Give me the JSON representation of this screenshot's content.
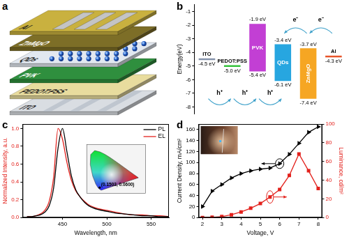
{
  "device": {
    "panel": "a",
    "layers": [
      "Al",
      "ZnMgO",
      "QDs",
      "PVK",
      "PEDOT:PSS",
      "ITO"
    ]
  },
  "chart_data": [
    {
      "panel": "b",
      "type": "energy_diagram",
      "y_label": "Energy(eV)",
      "ylim": [
        -8.5,
        -0.5
      ],
      "yticks": [
        -8,
        -7,
        -6,
        -5,
        -4,
        -3,
        -2,
        -1
      ],
      "materials": [
        {
          "name": "ITO",
          "color": "#8593ab",
          "level": {
            "value": -4.5,
            "label": "-4.5 eV"
          }
        },
        {
          "name": "PEDOT:PSS",
          "color": "#33c23a",
          "level": {
            "value": -5.0,
            "label": "-5.0 eV"
          }
        },
        {
          "name": "PVK",
          "color": "#c23fd4",
          "lumo": {
            "value": -1.9,
            "label": "-1.9 eV"
          },
          "homo": {
            "value": -5.4,
            "label": "-5.4 eV"
          }
        },
        {
          "name": "QDs",
          "color": "#27a6e0",
          "lumo": {
            "value": -3.4,
            "label": "-3.4 eV"
          },
          "homo": {
            "value": -6.1,
            "label": "-6.1 eV"
          }
        },
        {
          "name": "ZnMgO",
          "color": "#f6a623",
          "lumo": {
            "value": -3.7,
            "label": "-3.7 eV"
          },
          "homo": {
            "value": -7.4,
            "label": "-7.4 eV"
          }
        },
        {
          "name": "Al",
          "color": "#e8552a",
          "level": {
            "value": -4.3,
            "label": "-4.3 eV"
          }
        }
      ],
      "carriers": {
        "holes": [
          "h⁺",
          "h⁺",
          "h⁺"
        ],
        "electrons": [
          "e⁻",
          "e⁻"
        ]
      }
    },
    {
      "panel": "c",
      "type": "line",
      "x_label": "Wavelength, nm",
      "y_label": "Normalized Intensity, a.u.",
      "x": [
        410,
        415,
        420,
        425,
        430,
        435,
        440,
        445,
        450,
        455,
        460,
        465,
        470,
        475,
        480,
        490,
        500,
        510,
        520,
        530,
        540,
        550,
        560,
        570
      ],
      "series": [
        {
          "name": "PL",
          "color": "#000000",
          "values": [
            0.01,
            0.01,
            0.02,
            0.03,
            0.06,
            0.13,
            0.33,
            0.78,
            1.0,
            0.74,
            0.47,
            0.31,
            0.23,
            0.17,
            0.13,
            0.09,
            0.07,
            0.05,
            0.04,
            0.03,
            0.02,
            0.02,
            0.01,
            0.01
          ]
        },
        {
          "name": "EL",
          "color": "#e3211c",
          "values": [
            0.01,
            0.01,
            0.02,
            0.04,
            0.08,
            0.18,
            0.45,
            1.0,
            0.88,
            0.62,
            0.42,
            0.3,
            0.23,
            0.18,
            0.14,
            0.1,
            0.08,
            0.06,
            0.04,
            0.03,
            0.03,
            0.02,
            0.02,
            0.01
          ]
        }
      ],
      "xlim": [
        405,
        570
      ],
      "xticks": [
        450,
        500,
        550
      ],
      "ylim": [
        0,
        1.05
      ],
      "yticks": [
        {
          "value": 0,
          "label": "0.0"
        },
        0.2,
        0.4,
        0.6,
        0.8,
        {
          "value": 1,
          "label": "1.0"
        }
      ],
      "legend": "upper right",
      "cie_coordinates": {
        "x": 0.1503,
        "y": 0.06,
        "label": "(0.1503, 0.0600)"
      }
    },
    {
      "panel": "d",
      "type": "line",
      "x_label": "Voltage, V",
      "y_label": "Current Density, mA/cm²",
      "y2_label": "Luminance, cd/m²",
      "x": [
        2,
        2.5,
        3,
        3.5,
        4,
        4.5,
        5,
        5.5,
        6,
        6.5,
        7,
        7.5,
        8
      ],
      "series": [
        {
          "color": "#000000",
          "marker": "triangle",
          "values": [
            20,
            48,
            60,
            72,
            80,
            85,
            88,
            90,
            98,
            115,
            135,
            155,
            165
          ]
        },
        {
          "color": "#e3211c",
          "marker": "square",
          "axis": "y2",
          "values": [
            0,
            0.3,
            1,
            3,
            6,
            10,
            15,
            22,
            30,
            45,
            68,
            50,
            31
          ]
        }
      ],
      "xlim": [
        1.8,
        8.2
      ],
      "xticks": [
        2,
        3,
        4,
        5,
        6,
        7,
        8
      ],
      "ylim": [
        0,
        170
      ],
      "yticks": [
        0,
        20,
        40,
        60,
        80,
        100,
        120,
        140,
        160
      ],
      "y2lim": [
        0,
        100
      ],
      "y2ticks": [
        0,
        20,
        40,
        60,
        80,
        100
      ]
    }
  ]
}
